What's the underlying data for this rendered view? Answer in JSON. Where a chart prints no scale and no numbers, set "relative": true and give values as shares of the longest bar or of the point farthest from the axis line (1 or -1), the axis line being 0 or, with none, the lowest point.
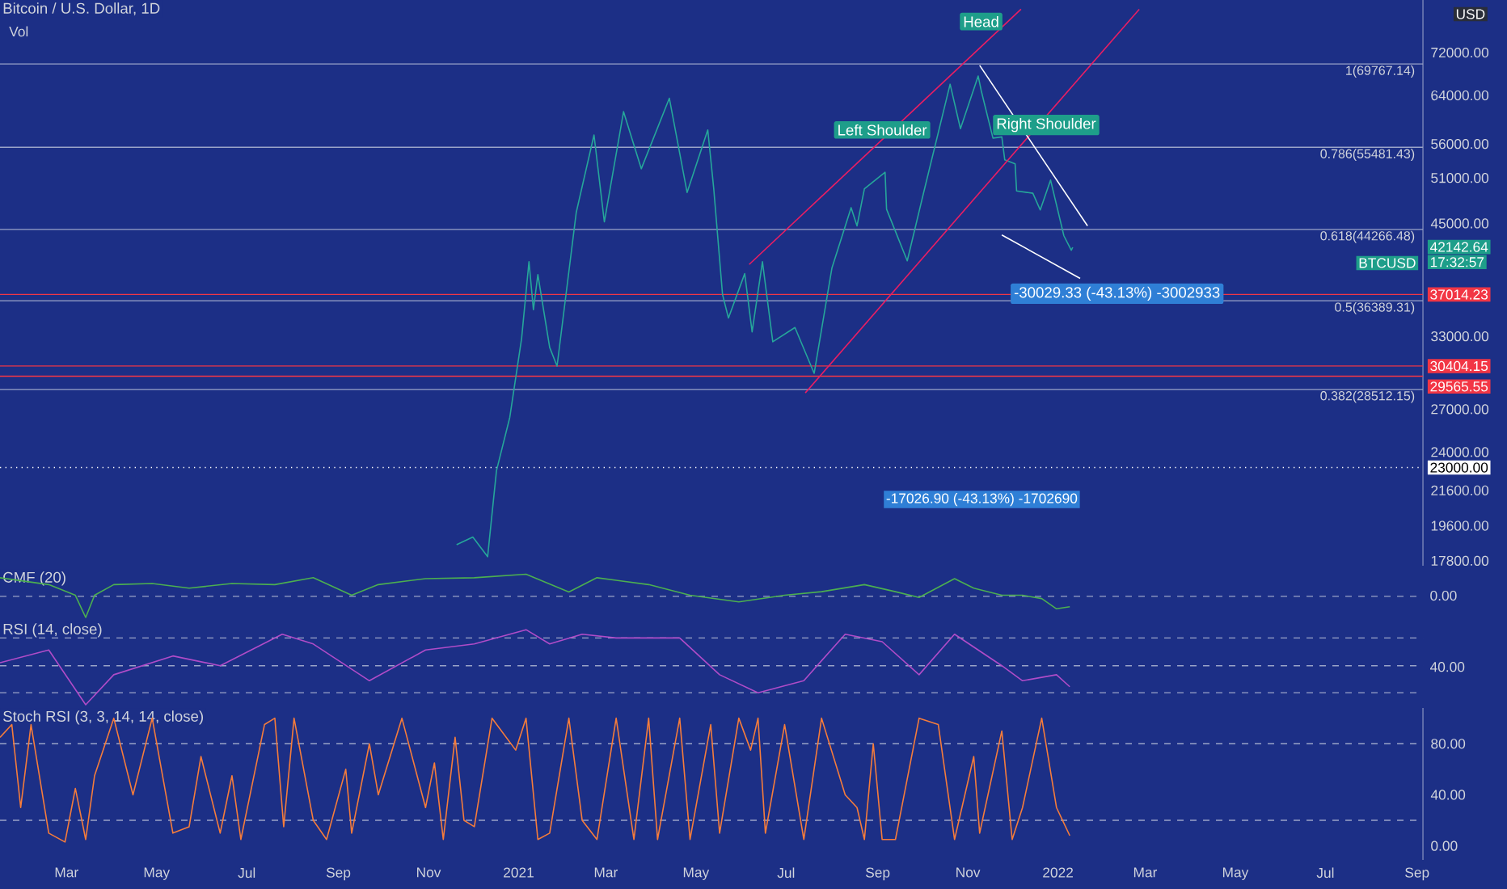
{
  "chart_data": [
    {
      "type": "line",
      "title": "Bitcoin / U.S. Dollar, 1D",
      "xlim": [
        "2020-01-16",
        "2022-09-05"
      ],
      "ylim": [
        17560,
        83200
      ],
      "log": "y",
      "tick_labels": "y",
      "yticks": [
        {
          "value": 72000,
          "label": "72000.00"
        },
        {
          "value": 64000,
          "label": "64000.00"
        },
        {
          "value": 56000,
          "label": "56000.00"
        },
        {
          "value": 51000,
          "label": "51000.00"
        },
        {
          "value": 45000,
          "label": "45000.00"
        },
        {
          "value": 33000,
          "label": "33000.00"
        },
        {
          "value": 27000,
          "label": "27000.00"
        },
        {
          "value": 24000,
          "label": "24000.00"
        },
        {
          "value": 21600,
          "label": "21600.00"
        },
        {
          "value": 19600,
          "label": "19600.00"
        },
        {
          "value": 17800,
          "label": "17800.00"
        }
      ],
      "series": [
        {
          "color": "#26a69a",
          "x": [
            "2020-11-20",
            "2020-12-01",
            "2020-12-11",
            "2020-12-17",
            "2020-12-26",
            "2021-01-03",
            "2021-01-08",
            "2021-01-11",
            "2021-01-14",
            "2021-01-22",
            "2021-01-27",
            "2021-02-09",
            "2021-02-21",
            "2021-02-28",
            "2021-03-13",
            "2021-03-25",
            "2021-04-13",
            "2021-04-25",
            "2021-05-09",
            "2021-05-13",
            "2021-05-19",
            "2021-05-23",
            "2021-06-03",
            "2021-06-08",
            "2021-06-15",
            "2021-06-22",
            "2021-07-07",
            "2021-07-20",
            "2021-08-01",
            "2021-08-14",
            "2021-08-18",
            "2021-08-23",
            "2021-09-06",
            "2021-09-07",
            "2021-09-21",
            "2021-10-01",
            "2021-10-20",
            "2021-10-27",
            "2021-11-08",
            "2021-11-10",
            "2021-11-18",
            "2021-11-24",
            "2021-11-26",
            "2021-12-03",
            "2021-12-04",
            "2021-12-15",
            "2021-12-20",
            "2021-12-27",
            "2022-01-05",
            "2022-01-10",
            "2022-01-11"
          ],
          "values": [
            18600,
            19000,
            18000,
            22800,
            26400,
            32800,
            40500,
            35500,
            39100,
            32000,
            30400,
            46400,
            57400,
            45200,
            61200,
            52300,
            63500,
            49000,
            58200,
            49600,
            37000,
            34700,
            39200,
            33400,
            40500,
            32500,
            33800,
            29800,
            39800,
            47000,
            44700,
            49500,
            51800,
            46800,
            40600,
            48100,
            66000,
            58400,
            67500,
            64900,
            56900,
            57100,
            53600,
            53000,
            49200,
            48900,
            46700,
            50700,
            43500,
            41800,
            42142.64
          ]
        },
        {
          "color": "#e91e63",
          "x": [
            "2021-06-06",
            "2021-12-07"
          ],
          "values": [
            40200,
            81100
          ]
        },
        {
          "color": "#e91e63",
          "x": [
            "2021-07-14",
            "2022-02-25"
          ],
          "values": [
            28240,
            81100
          ]
        },
        {
          "color": "#ffffff",
          "x": [
            "2021-11-09",
            "2022-01-21"
          ],
          "values": [
            69500,
            44700
          ]
        },
        {
          "color": "#ffffff",
          "x": [
            "2021-11-24",
            "2022-01-16"
          ],
          "values": [
            43600,
            38700
          ]
        }
      ],
      "ref_lines": [
        {
          "axis": "y",
          "value": 69767.14,
          "label": "1(69767.14)"
        },
        {
          "axis": "y",
          "value": 55481.43,
          "label": "0.786(55481.43)"
        },
        {
          "axis": "y",
          "value": 44266.48,
          "label": "0.618(44266.48)"
        },
        {
          "axis": "y",
          "value": 36389.31,
          "label": "0.5(36389.31)"
        },
        {
          "axis": "y",
          "value": 28512.15,
          "label": "0.382(28512.15)"
        },
        {
          "axis": "y",
          "value": 37014.23,
          "label": "37014.23",
          "color": "#f23645"
        },
        {
          "axis": "y",
          "value": 30404.15,
          "label": "30404.15",
          "color": "#f23645"
        },
        {
          "axis": "y",
          "value": 29565.55,
          "label": "29565.55",
          "color": "#f23645"
        },
        {
          "axis": "y",
          "value": 23000,
          "label": "23000.00",
          "color": "#ffffff",
          "line_style": "dotted"
        }
      ],
      "annotations": [
        "Vol",
        {
          "text": "Head",
          "x": "2021-11-10",
          "y": 78400
        },
        {
          "text": "Left Shoulder",
          "x": "2021-09-04",
          "y": 58200
        },
        {
          "text": "Right Shoulder",
          "x": "2021-12-24",
          "y": 59000
        },
        {
          "text": "-30029.33 (-43.13%) -3002933",
          "x": "2022-02-10",
          "y": 37100
        },
        "-17026.90 (-43.13%) -1702690",
        "BTCUSD",
        "42142.64",
        "17:32:57",
        "USD"
      ]
    },
    {
      "type": "line",
      "title": "CMF (20)",
      "relative": true,
      "xlim": [
        "2020-01-16",
        "2022-09-05"
      ],
      "tick_labels": false,
      "series": [
        {
          "color": "#4caf50",
          "x": [
            "2020-01-16",
            "2020-02-18",
            "2020-03-07",
            "2020-03-14",
            "2020-03-20",
            "2020-04-02",
            "2020-04-28",
            "2020-05-23",
            "2020-06-21",
            "2020-07-20",
            "2020-08-15",
            "2020-09-10",
            "2020-09-28",
            "2020-10-30",
            "2020-12-02",
            "2021-01-06",
            "2021-02-04",
            "2021-02-23",
            "2021-03-30",
            "2021-04-27",
            "2021-05-30",
            "2021-06-30",
            "2021-07-25",
            "2021-08-23",
            "2021-09-13",
            "2021-09-29",
            "2021-10-23",
            "2021-11-05",
            "2021-11-24",
            "2021-12-08",
            "2021-12-21",
            "2021-12-31",
            "2022-01-09"
          ],
          "values": [
            0.84,
            0.53,
            0.05,
            -0.95,
            0.05,
            0.53,
            0.58,
            0.37,
            0.58,
            0.53,
            0.84,
            0.05,
            0.53,
            0.8,
            0.84,
            1,
            0.2,
            0.84,
            0.53,
            0.05,
            -0.25,
            0.05,
            0.21,
            0.53,
            0.21,
            -0.05,
            0.8,
            0.37,
            0.05,
            0.05,
            -0.1,
            -0.56,
            -0.47
          ]
        }
      ],
      "ref_lines": [
        {
          "axis": "y",
          "value": 0,
          "line_style": "dashed"
        }
      ],
      "annotations": [
        "0.00"
      ]
    },
    {
      "type": "line",
      "title": "RSI (14, close)",
      "relative": true,
      "xlim": [
        "2020-01-16",
        "2022-09-05"
      ],
      "tick_labels": false,
      "series": [
        {
          "color": "#b04cc8",
          "x": [
            "2020-01-16",
            "2020-02-18",
            "2020-03-14",
            "2020-04-02",
            "2020-05-12",
            "2020-06-13",
            "2020-07-25",
            "2020-08-15",
            "2020-09-22",
            "2020-10-30",
            "2020-12-02",
            "2021-01-06",
            "2021-01-22",
            "2021-02-13",
            "2021-03-08",
            "2021-04-20",
            "2021-05-17",
            "2021-06-12",
            "2021-07-13",
            "2021-08-10",
            "2021-09-04",
            "2021-09-29",
            "2021-10-23",
            "2021-11-24",
            "2021-12-08",
            "2021-12-31",
            "2022-01-09"
          ],
          "values": [
            0.56,
            0.73,
            0,
            0.4,
            0.65,
            0.52,
            0.94,
            0.81,
            0.32,
            0.73,
            0.81,
            1,
            0.81,
            0.94,
            0.89,
            0.89,
            0.4,
            0.16,
            0.32,
            0.94,
            0.84,
            0.4,
            0.94,
            0.52,
            0.32,
            0.4,
            0.24
          ]
        }
      ],
      "ref_lines": [
        {
          "axis": "y",
          "value": 0.89,
          "line_style": "dashed"
        },
        {
          "axis": "y",
          "value": 0.52,
          "line_style": "dashed"
        },
        {
          "axis": "y",
          "value": 0.16,
          "line_style": "dashed"
        }
      ],
      "annotations": [
        "40.00"
      ]
    },
    {
      "type": "line",
      "title": "Stoch RSI (3, 3, 14, 14, close)",
      "xlim": [
        "2020-01-16",
        "2022-09-05"
      ],
      "ylim": [
        -11,
        108
      ],
      "yticks": [
        {
          "value": 0,
          "label": "0.00"
        },
        {
          "value": 40,
          "label": "40.00"
        },
        {
          "value": 80,
          "label": "80.00"
        }
      ],
      "xticks": [
        {
          "value": "2020-03-01",
          "label": "Mar"
        },
        {
          "value": "2020-05-01",
          "label": "May"
        },
        {
          "value": "2020-07-01",
          "label": "Jul"
        },
        {
          "value": "2020-09-01",
          "label": "Sep"
        },
        {
          "value": "2020-11-01",
          "label": "Nov"
        },
        {
          "value": "2021-01-01",
          "label": "2021"
        },
        {
          "value": "2021-03-01",
          "label": "Mar"
        },
        {
          "value": "2021-05-01",
          "label": "May"
        },
        {
          "value": "2021-07-01",
          "label": "Jul"
        },
        {
          "value": "2021-09-01",
          "label": "Sep"
        },
        {
          "value": "2021-11-01",
          "label": "Nov"
        },
        {
          "value": "2022-01-01",
          "label": "2022"
        },
        {
          "value": "2022-03-01",
          "label": "Mar"
        },
        {
          "value": "2022-05-01",
          "label": "May"
        },
        {
          "value": "2022-07-01",
          "label": "Jul"
        },
        {
          "value": "2022-09-01",
          "label": "Sep"
        }
      ],
      "series": [
        {
          "color": "#f57c3b",
          "x": [
            "2020-01-16",
            "2020-01-24",
            "2020-01-30",
            "2020-02-06",
            "2020-02-18",
            "2020-02-29",
            "2020-03-07",
            "2020-03-14",
            "2020-03-20",
            "2020-04-02",
            "2020-04-15",
            "2020-04-28",
            "2020-05-12",
            "2020-05-23",
            "2020-05-31",
            "2020-06-13",
            "2020-06-21",
            "2020-06-27",
            "2020-07-13",
            "2020-07-20",
            "2020-07-26",
            "2020-08-02",
            "2020-08-15",
            "2020-08-24",
            "2020-09-06",
            "2020-09-10",
            "2020-09-22",
            "2020-09-28",
            "2020-10-14",
            "2020-10-30",
            "2020-11-05",
            "2020-11-11",
            "2020-11-19",
            "2020-11-25",
            "2020-12-02",
            "2020-12-14",
            "2020-12-30",
            "2021-01-06",
            "2021-01-14",
            "2021-01-22",
            "2021-02-04",
            "2021-02-13",
            "2021-02-23",
            "2021-03-08",
            "2021-03-20",
            "2021-03-30",
            "2021-04-05",
            "2021-04-20",
            "2021-04-27",
            "2021-05-11",
            "2021-05-17",
            "2021-05-30",
            "2021-06-07",
            "2021-06-12",
            "2021-06-17",
            "2021-06-30",
            "2021-07-13",
            "2021-07-25",
            "2021-08-10",
            "2021-08-18",
            "2021-08-23",
            "2021-08-29",
            "2021-09-04",
            "2021-09-13",
            "2021-09-29",
            "2021-10-12",
            "2021-10-23",
            "2021-11-05",
            "2021-11-09",
            "2021-11-24",
            "2021-12-01",
            "2021-12-08",
            "2021-12-21",
            "2021-12-31",
            "2022-01-09"
          ],
          "values": [
            85,
            95,
            30,
            95,
            10,
            3,
            45,
            5,
            55,
            100,
            40,
            100,
            10,
            15,
            70,
            10,
            55,
            5,
            95,
            100,
            15,
            100,
            20,
            5,
            60,
            10,
            80,
            40,
            100,
            30,
            65,
            5,
            85,
            20,
            15,
            100,
            75,
            100,
            5,
            10,
            100,
            20,
            5,
            100,
            5,
            100,
            5,
            100,
            5,
            95,
            10,
            100,
            75,
            100,
            10,
            95,
            5,
            100,
            40,
            30,
            5,
            80,
            5,
            5,
            100,
            95,
            5,
            70,
            10,
            90,
            5,
            30,
            100,
            30,
            8
          ]
        }
      ],
      "ref_lines": [
        {
          "axis": "y",
          "value": 80,
          "line_style": "dashed"
        },
        {
          "axis": "y",
          "value": 20,
          "line_style": "dashed"
        }
      ]
    }
  ]
}
